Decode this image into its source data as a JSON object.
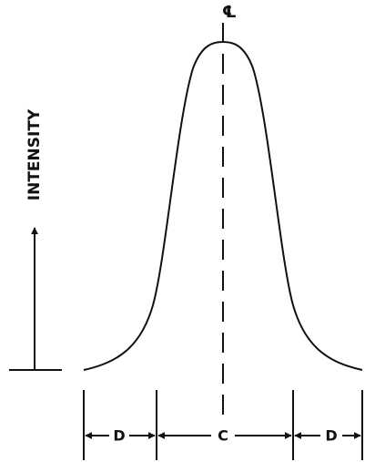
{
  "centerline_label": "℄",
  "axis_label": "INTENSITY",
  "dimensions": [
    {
      "label": "D"
    },
    {
      "label": "C"
    },
    {
      "label": "D"
    }
  ]
}
